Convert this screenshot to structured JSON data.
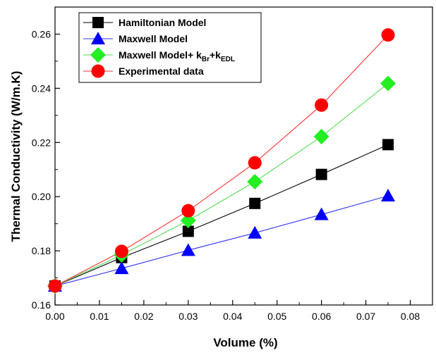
{
  "chart_data": {
    "type": "line",
    "title": "",
    "xlabel": "Volume (%)",
    "ylabel": "Thermal Conductivity (W/m.K)",
    "xlim": [
      0.0,
      0.085
    ],
    "ylim": [
      0.16,
      0.27
    ],
    "xticks": [
      "0.00",
      "0.01",
      "0.02",
      "0.03",
      "0.04",
      "0.05",
      "0.06",
      "0.07",
      "0.08"
    ],
    "yticks": [
      "0.16",
      "0.18",
      "0.20",
      "0.22",
      "0.24",
      "0.26"
    ],
    "grid": false,
    "legend_position": "top-left",
    "x": [
      0.0,
      0.015,
      0.03,
      0.045,
      0.06,
      0.075
    ],
    "series": [
      {
        "name": "Hamiltonian Model",
        "marker": "square",
        "color": "#000000",
        "line_color": "#000000",
        "values": [
          0.167,
          0.1775,
          0.1872,
          0.1975,
          0.2082,
          0.2192
        ]
      },
      {
        "name": "Maxwell Model",
        "marker": "triangle",
        "color": "#0000ff",
        "line_color": "#3333ff",
        "values": [
          0.167,
          0.1735,
          0.1802,
          0.1866,
          0.1934,
          0.2003
        ]
      },
      {
        "name": "Maxwell Model+ k_Br+k_EDL",
        "name_parts": {
          "base": "Maxwell Model+ k",
          "sub1": "Br",
          "mid": "+k",
          "sub2": "EDL"
        },
        "marker": "diamond",
        "color": "#22ee22",
        "line_color": "#55dd55",
        "values": [
          0.167,
          0.1785,
          0.1912,
          0.2055,
          0.2222,
          0.2418
        ]
      },
      {
        "name": "Experimental data",
        "marker": "circle",
        "color": "#ff0000",
        "line_color": "#ff3333",
        "values": [
          0.167,
          0.1798,
          0.1948,
          0.2125,
          0.2338,
          0.2597
        ]
      }
    ]
  }
}
